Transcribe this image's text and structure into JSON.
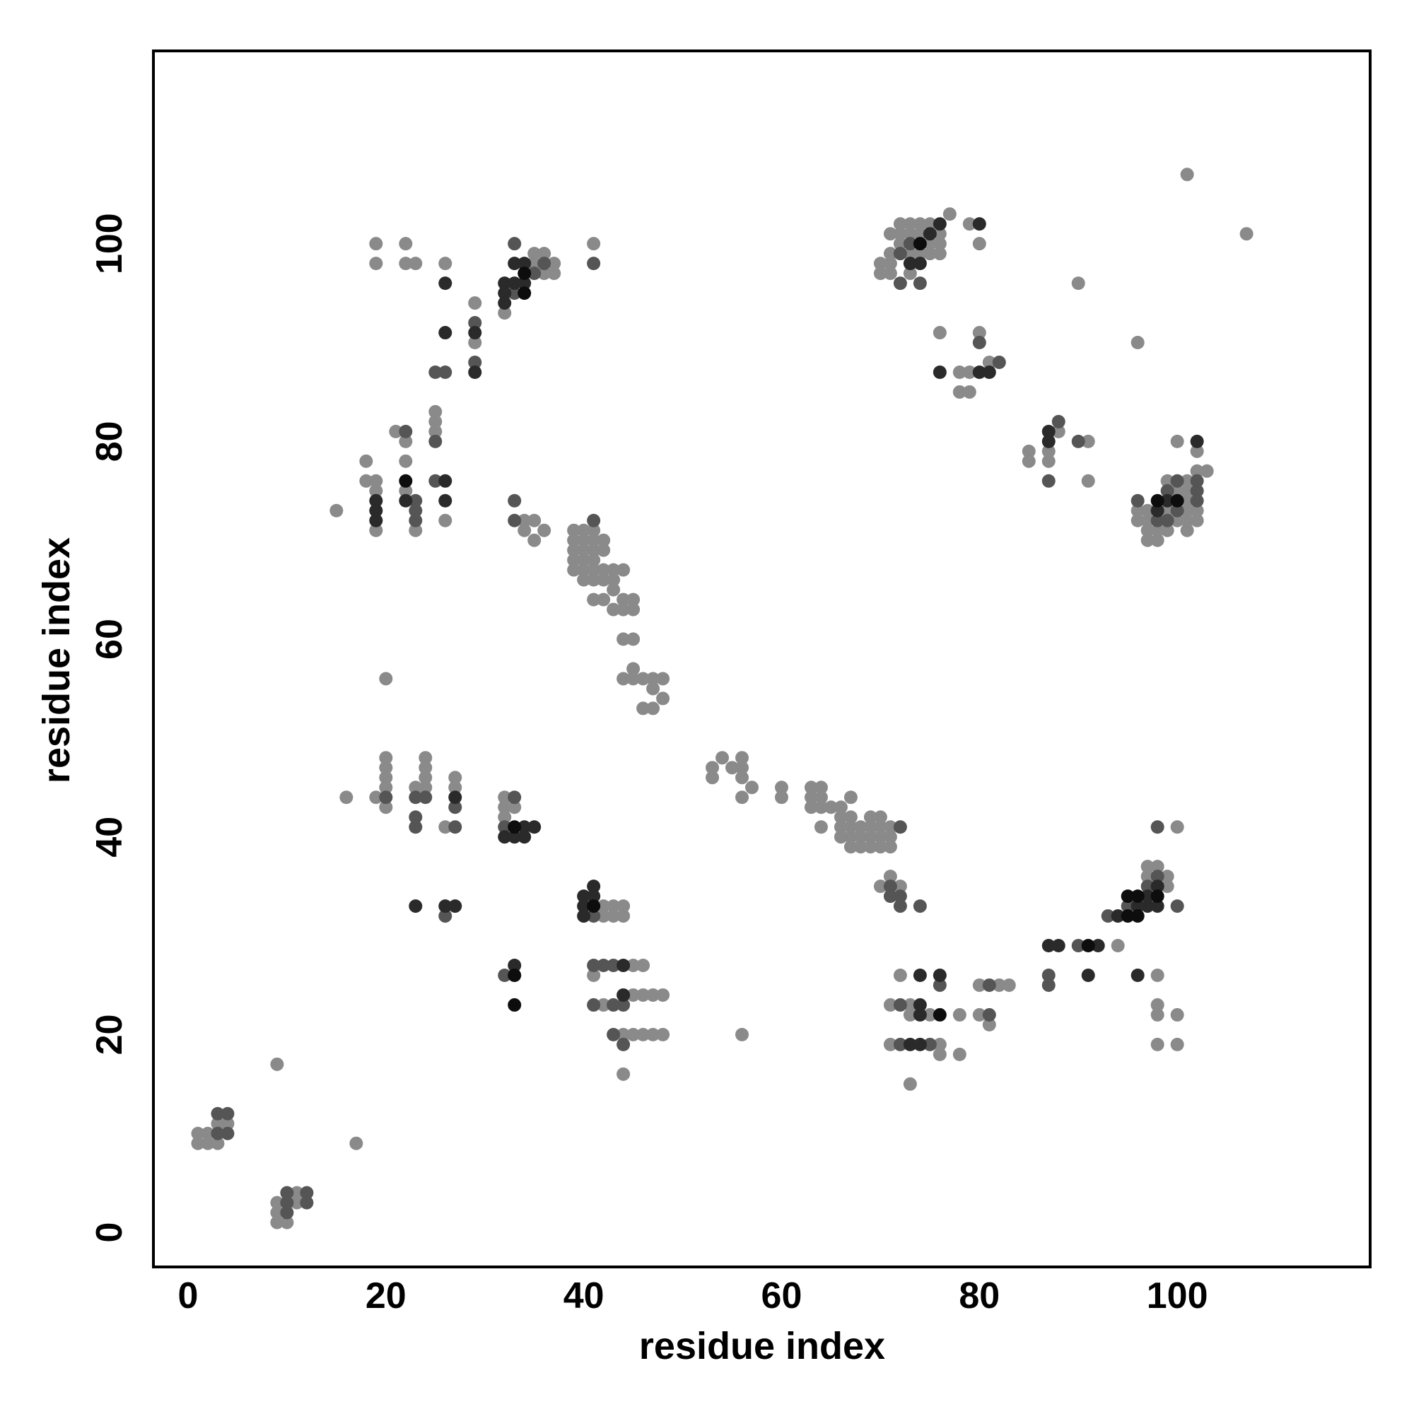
{
  "chart_data": {
    "type": "scatter",
    "xlabel": "residue index",
    "ylabel": "residue index",
    "xlim": [
      -3.5,
      119.5
    ],
    "ylim": [
      -3.5,
      119.5
    ],
    "xticks": [
      0,
      20,
      40,
      60,
      80,
      100
    ],
    "yticks": [
      0,
      20,
      40,
      60,
      80,
      100
    ],
    "grid": false,
    "series": [
      {
        "color": "#8a8a8a",
        "x": [
          1,
          1,
          2,
          2,
          3,
          3,
          4,
          9,
          9,
          9,
          10,
          11,
          11,
          9,
          17,
          18,
          18,
          19,
          19,
          19,
          15,
          21,
          22,
          22,
          22,
          23,
          25,
          25,
          25,
          26,
          19,
          19,
          22,
          22,
          23,
          26,
          29,
          29,
          32,
          35,
          35,
          36,
          36,
          37,
          37,
          41,
          34,
          34,
          35,
          35,
          36,
          39,
          39,
          39,
          39,
          39,
          40,
          40,
          40,
          40,
          40,
          40,
          41,
          41,
          41,
          41,
          41,
          41,
          41,
          42,
          42,
          42,
          42,
          42,
          43,
          43,
          43,
          43,
          44,
          44,
          44,
          45,
          45,
          45,
          44,
          44,
          45,
          45,
          46,
          46,
          47,
          47,
          47,
          48,
          48,
          20,
          16,
          19,
          20,
          20,
          20,
          20,
          20,
          23,
          24,
          24,
          24,
          24,
          26,
          27,
          27,
          32,
          32,
          32,
          33,
          42,
          42,
          43,
          43,
          44,
          44,
          41,
          42,
          45,
          46,
          45,
          46,
          47,
          48,
          44,
          45,
          46,
          47,
          48,
          44,
          53,
          53,
          54,
          55,
          56,
          56,
          56,
          56,
          57,
          60,
          60,
          63,
          63,
          63,
          64,
          64,
          64,
          64,
          65,
          66,
          66,
          66,
          66,
          67,
          67,
          67,
          67,
          67,
          68,
          68,
          68,
          69,
          69,
          69,
          69,
          70,
          70,
          70,
          70,
          71,
          71,
          71,
          56,
          70,
          71,
          72,
          72,
          71,
          73,
          75,
          73,
          71,
          76,
          76,
          78,
          78,
          73,
          80,
          80,
          81,
          82,
          83,
          94,
          97,
          97,
          98,
          99,
          99,
          100,
          98,
          98,
          98,
          98,
          100,
          100,
          70,
          70,
          71,
          71,
          71,
          71,
          72,
          72,
          72,
          73,
          73,
          73,
          73,
          74,
          74,
          74,
          75,
          75,
          75,
          76,
          76,
          76,
          77,
          79,
          80,
          76,
          78,
          78,
          79,
          79,
          80,
          81,
          85,
          85,
          87,
          87,
          88,
          91,
          91,
          90,
          96,
          96,
          96,
          97,
          97,
          97,
          97,
          98,
          98,
          99,
          99,
          99,
          100,
          100,
          100,
          101,
          101,
          101,
          101,
          101,
          101,
          102,
          102,
          102,
          102,
          103,
          101,
          107
        ],
        "y": [
          9,
          10,
          9,
          10,
          9,
          11,
          11,
          1,
          2,
          3,
          1,
          3,
          4,
          17,
          9,
          78,
          76,
          76,
          75,
          71,
          73,
          81,
          80,
          78,
          75,
          71,
          83,
          82,
          81,
          72,
          100,
          98,
          100,
          98,
          98,
          98,
          94,
          90,
          93,
          99,
          98,
          99,
          97,
          98,
          97,
          100,
          72,
          71,
          72,
          70,
          71,
          71,
          70,
          69,
          68,
          67,
          71,
          70,
          69,
          68,
          67,
          66,
          71,
          70,
          69,
          68,
          67,
          66,
          64,
          70,
          69,
          67,
          66,
          64,
          67,
          66,
          65,
          63,
          67,
          64,
          63,
          64,
          63,
          60,
          60,
          56,
          57,
          56,
          56,
          53,
          56,
          55,
          53,
          56,
          54,
          56,
          44,
          44,
          48,
          47,
          46,
          45,
          43,
          45,
          48,
          47,
          46,
          45,
          41,
          46,
          45,
          44,
          43,
          42,
          43,
          33,
          32,
          33,
          32,
          33,
          32,
          26,
          23,
          27,
          27,
          24,
          24,
          24,
          24,
          20,
          20,
          20,
          20,
          20,
          16,
          47,
          46,
          48,
          47,
          48,
          47,
          46,
          44,
          45,
          45,
          44,
          45,
          44,
          43,
          45,
          44,
          43,
          41,
          43,
          43,
          42,
          41,
          40,
          44,
          42,
          41,
          40,
          39,
          41,
          40,
          39,
          42,
          41,
          40,
          39,
          42,
          41,
          40,
          39,
          41,
          40,
          39,
          20,
          35,
          36,
          35,
          26,
          23,
          23,
          22,
          22,
          19,
          19,
          18,
          22,
          18,
          15,
          25,
          22,
          21,
          25,
          25,
          29,
          36,
          37,
          37,
          36,
          35,
          41,
          26,
          23,
          22,
          19,
          22,
          19,
          98,
          97,
          99,
          98,
          97,
          101,
          102,
          101,
          100,
          102,
          101,
          99,
          97,
          102,
          101,
          99,
          102,
          100,
          99,
          101,
          100,
          99,
          103,
          102,
          100,
          91,
          87,
          85,
          87,
          85,
          91,
          88,
          79,
          78,
          79,
          78,
          81,
          80,
          76,
          96,
          90,
          73,
          72,
          73,
          72,
          71,
          70,
          71,
          70,
          76,
          73,
          71,
          75,
          72,
          80,
          76,
          75,
          74,
          73,
          72,
          71,
          79,
          77,
          73,
          72,
          77,
          107,
          101
        ]
      },
      {
        "color": "#555555",
        "x": [
          3,
          3,
          4,
          4,
          10,
          10,
          10,
          12,
          12,
          22,
          23,
          23,
          23,
          25,
          25,
          25,
          26,
          29,
          29,
          33,
          33,
          35,
          36,
          41,
          33,
          33,
          41,
          20,
          23,
          23,
          23,
          24,
          27,
          27,
          32,
          33,
          26,
          32,
          41,
          41,
          42,
          43,
          41,
          43,
          44,
          43,
          44,
          72,
          71,
          71,
          72,
          72,
          74,
          76,
          72,
          72,
          75,
          81,
          81,
          87,
          87,
          90,
          93,
          95,
          97,
          98,
          98,
          100,
          72,
          73,
          72,
          74,
          80,
          82,
          87,
          88,
          90,
          96,
          98,
          99,
          99,
          100,
          100,
          102,
          102,
          102
        ],
        "y": [
          10,
          12,
          10,
          12,
          2,
          3,
          4,
          3,
          4,
          81,
          74,
          73,
          72,
          80,
          76,
          87,
          87,
          92,
          88,
          100,
          95,
          97,
          98,
          98,
          74,
          72,
          72,
          44,
          44,
          42,
          41,
          44,
          43,
          41,
          41,
          44,
          32,
          26,
          32,
          27,
          27,
          27,
          23,
          23,
          23,
          20,
          19,
          41,
          35,
          34,
          34,
          33,
          33,
          25,
          23,
          19,
          19,
          25,
          22,
          26,
          25,
          29,
          32,
          33,
          35,
          36,
          41,
          33,
          99,
          100,
          96,
          96,
          90,
          88,
          76,
          82,
          80,
          74,
          72,
          75,
          72,
          76,
          73,
          76,
          75,
          74
        ]
      },
      {
        "color": "#2a2a2a",
        "x": [
          19,
          19,
          19,
          22,
          26,
          26,
          26,
          26,
          29,
          29,
          32,
          32,
          32,
          33,
          33,
          34,
          34,
          27,
          32,
          33,
          34,
          34,
          35,
          23,
          26,
          27,
          33,
          40,
          40,
          40,
          41,
          41,
          44,
          44,
          74,
          76,
          74,
          74,
          73,
          74,
          87,
          88,
          92,
          91,
          94,
          96,
          97,
          97,
          98,
          98,
          96,
          73,
          74,
          75,
          76,
          80,
          76,
          80,
          81,
          87,
          87,
          102,
          98,
          99
        ],
        "y": [
          74,
          73,
          72,
          74,
          76,
          74,
          96,
          91,
          91,
          87,
          96,
          95,
          94,
          98,
          96,
          98,
          96,
          44,
          40,
          40,
          41,
          40,
          41,
          33,
          33,
          33,
          27,
          34,
          33,
          32,
          35,
          34,
          27,
          24,
          26,
          26,
          23,
          22,
          19,
          19,
          29,
          29,
          29,
          26,
          32,
          33,
          34,
          33,
          35,
          33,
          26,
          98,
          98,
          101,
          102,
          102,
          87,
          87,
          87,
          81,
          80,
          80,
          73,
          74
        ]
      },
      {
        "color": "#0d0d0d",
        "x": [
          22,
          34,
          34,
          33,
          33,
          33,
          41,
          76,
          91,
          95,
          95,
          96,
          96,
          98,
          74,
          98,
          100
        ],
        "y": [
          76,
          97,
          95,
          41,
          26,
          23,
          33,
          22,
          29,
          32,
          34,
          34,
          32,
          34,
          100,
          74,
          74
        ]
      }
    ]
  }
}
